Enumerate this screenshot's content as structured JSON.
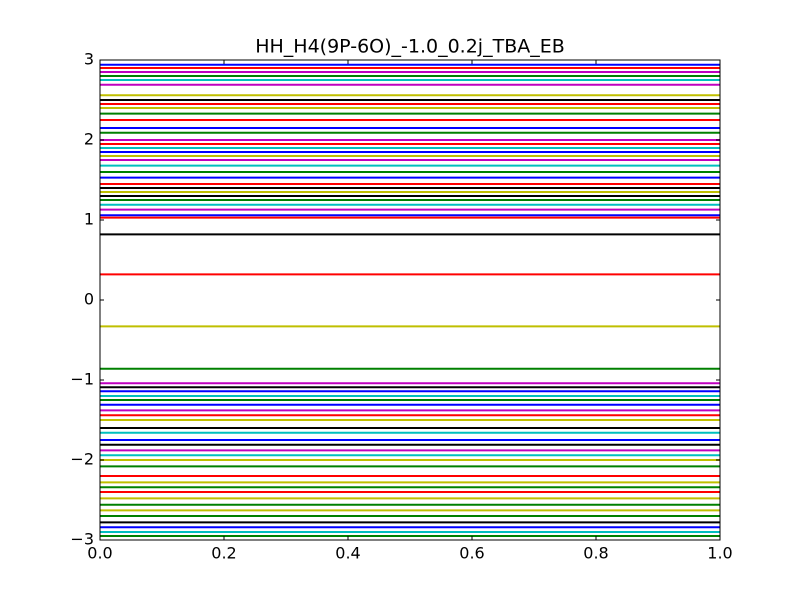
{
  "chart_data": {
    "type": "line",
    "title": "HH_H4(9P-6O)_-1.0_0.2j_TBA_EB",
    "x": [
      0,
      1
    ],
    "xlim": [
      0,
      1
    ],
    "xticks": [
      {
        "value": 0,
        "label": "0.0"
      },
      {
        "value": 0.2,
        "label": "0.2"
      },
      {
        "value": 0.4,
        "label": "0.4"
      },
      {
        "value": 0.6,
        "label": "0.6"
      },
      {
        "value": 0.8,
        "label": "0.8"
      },
      {
        "value": 1,
        "label": "1.0"
      }
    ],
    "ylim": [
      -3,
      3
    ],
    "yticks": [
      {
        "value": -3,
        "label": "−3"
      },
      {
        "value": -2,
        "label": "−2"
      },
      {
        "value": -1,
        "label": "−1"
      },
      0,
      1,
      2,
      3
    ],
    "series": [
      {
        "color": "#0000ff",
        "values": [
          2.94,
          2.94
        ]
      },
      {
        "color": "#ff0000",
        "values": [
          2.9,
          2.9
        ]
      },
      {
        "color": "#bf00bf",
        "values": [
          2.85,
          2.85
        ]
      },
      {
        "color": "#008000",
        "values": [
          2.8,
          2.8
        ]
      },
      {
        "color": "#00bfbf",
        "values": [
          2.75,
          2.75
        ]
      },
      {
        "color": "#bf00bf",
        "values": [
          2.69,
          2.69
        ]
      },
      {
        "color": "#bfbf00",
        "values": [
          2.56,
          2.56
        ]
      },
      {
        "color": "#000000",
        "values": [
          2.5,
          2.5
        ]
      },
      {
        "color": "#ff0000",
        "values": [
          2.45,
          2.45
        ]
      },
      {
        "color": "#bfbf00",
        "values": [
          2.4,
          2.4
        ]
      },
      {
        "color": "#008000",
        "values": [
          2.33,
          2.33
        ]
      },
      {
        "color": "#ff0000",
        "values": [
          2.25,
          2.25
        ]
      },
      {
        "color": "#0000ff",
        "values": [
          2.15,
          2.15
        ]
      },
      {
        "color": "#008000",
        "values": [
          2.09,
          2.09
        ]
      },
      {
        "color": "#bf00bf",
        "values": [
          2.0,
          2.0
        ]
      },
      {
        "color": "#ff0000",
        "values": [
          1.95,
          1.95
        ]
      },
      {
        "color": "#00bfbf",
        "values": [
          1.9,
          1.9
        ]
      },
      {
        "color": "#0000ff",
        "values": [
          1.85,
          1.85
        ]
      },
      {
        "color": "#bfbf00",
        "values": [
          1.8,
          1.8
        ]
      },
      {
        "color": "#bf00bf",
        "values": [
          1.75,
          1.75
        ]
      },
      {
        "color": "#00bfbf",
        "values": [
          1.68,
          1.68
        ]
      },
      {
        "color": "#008000",
        "values": [
          1.6,
          1.6
        ]
      },
      {
        "color": "#0000ff",
        "values": [
          1.53,
          1.53
        ]
      },
      {
        "color": "#ff0000",
        "values": [
          1.45,
          1.45
        ]
      },
      {
        "color": "#000000",
        "values": [
          1.4,
          1.4
        ]
      },
      {
        "color": "#bfbf00",
        "values": [
          1.35,
          1.35
        ]
      },
      {
        "color": "#000000",
        "values": [
          1.3,
          1.3
        ]
      },
      {
        "color": "#008000",
        "values": [
          1.25,
          1.25
        ]
      },
      {
        "color": "#00bfbf",
        "values": [
          1.19,
          1.19
        ]
      },
      {
        "color": "#bf00bf",
        "values": [
          1.13,
          1.13
        ]
      },
      {
        "color": "#0000ff",
        "values": [
          1.06,
          1.06
        ]
      },
      {
        "color": "#ff0000",
        "values": [
          1.03,
          1.03
        ]
      },
      {
        "color": "#000000",
        "values": [
          0.82,
          0.82
        ]
      },
      {
        "color": "#ff0000",
        "values": [
          0.32,
          0.32
        ]
      },
      {
        "color": "#bfbf00",
        "values": [
          -0.33,
          -0.33
        ]
      },
      {
        "color": "#008000",
        "values": [
          -0.86,
          -0.86
        ]
      },
      {
        "color": "#bf00bf",
        "values": [
          -1.04,
          -1.04
        ]
      },
      {
        "color": "#000000",
        "values": [
          -1.09,
          -1.09
        ]
      },
      {
        "color": "#0000ff",
        "values": [
          -1.14,
          -1.14
        ]
      },
      {
        "color": "#00bfbf",
        "values": [
          -1.2,
          -1.2
        ]
      },
      {
        "color": "#008000",
        "values": [
          -1.25,
          -1.25
        ]
      },
      {
        "color": "#0000ff",
        "values": [
          -1.31,
          -1.31
        ]
      },
      {
        "color": "#bf00bf",
        "values": [
          -1.38,
          -1.38
        ]
      },
      {
        "color": "#ff0000",
        "values": [
          -1.44,
          -1.44
        ]
      },
      {
        "color": "#bfbf00",
        "values": [
          -1.5,
          -1.5
        ]
      },
      {
        "color": "#000000",
        "values": [
          -1.6,
          -1.6
        ]
      },
      {
        "color": "#00bfbf",
        "values": [
          -1.66,
          -1.66
        ]
      },
      {
        "color": "#0000ff",
        "values": [
          -1.75,
          -1.75
        ]
      },
      {
        "color": "#000000",
        "values": [
          -1.81,
          -1.81
        ]
      },
      {
        "color": "#bf00bf",
        "values": [
          -1.88,
          -1.88
        ]
      },
      {
        "color": "#00bfbf",
        "values": [
          -1.94,
          -1.94
        ]
      },
      {
        "color": "#bfbf00",
        "values": [
          -2.0,
          -2.0
        ]
      },
      {
        "color": "#008000",
        "values": [
          -2.08,
          -2.08
        ]
      },
      {
        "color": "#ff0000",
        "values": [
          -2.2,
          -2.2
        ]
      },
      {
        "color": "#bfbf00",
        "values": [
          -2.28,
          -2.28
        ]
      },
      {
        "color": "#008000",
        "values": [
          -2.34,
          -2.34
        ]
      },
      {
        "color": "#ff0000",
        "values": [
          -2.4,
          -2.4
        ]
      },
      {
        "color": "#bfbf00",
        "values": [
          -2.48,
          -2.48
        ]
      },
      {
        "color": "#008000",
        "values": [
          -2.56,
          -2.56
        ]
      },
      {
        "color": "#bfbf00",
        "values": [
          -2.63,
          -2.63
        ]
      },
      {
        "color": "#008000",
        "values": [
          -2.7,
          -2.7
        ]
      },
      {
        "color": "#000000",
        "values": [
          -2.78,
          -2.78
        ]
      },
      {
        "color": "#0000ff",
        "values": [
          -2.84,
          -2.84
        ]
      },
      {
        "color": "#00bfbf",
        "values": [
          -2.9,
          -2.9
        ]
      },
      {
        "color": "#008000",
        "values": [
          -2.95,
          -2.95
        ]
      }
    ]
  }
}
